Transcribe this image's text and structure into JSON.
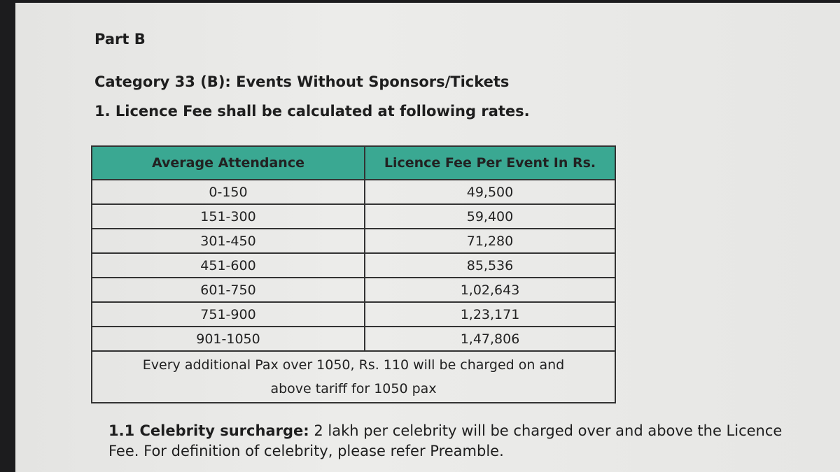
{
  "header": {
    "part": "Part B",
    "category": "Category 33 (B): Events Without Sponsors/Tickets",
    "subheading": "1. Licence Fee shall be calculated at following rates."
  },
  "table": {
    "columns": [
      "Average Attendance",
      "Licence Fee Per Event In Rs."
    ],
    "rows": [
      [
        "0-150",
        "49,500"
      ],
      [
        "151-300",
        "59,400"
      ],
      [
        "301-450",
        "71,280"
      ],
      [
        "451-600",
        "85,536"
      ],
      [
        "601-750",
        "1,02,643"
      ],
      [
        "751-900",
        "1,23,171"
      ],
      [
        "901-1050",
        "1,47,806"
      ]
    ],
    "note": "Every additional Pax over 1050, Rs. 110 will be charged on and above tariff for 1050 pax"
  },
  "section": {
    "label": "1.1 Celebrity surcharge:",
    "text": "2 lakh per celebrity will be charged over and above the Licence Fee. For definition of celebrity, please refer Preamble."
  }
}
